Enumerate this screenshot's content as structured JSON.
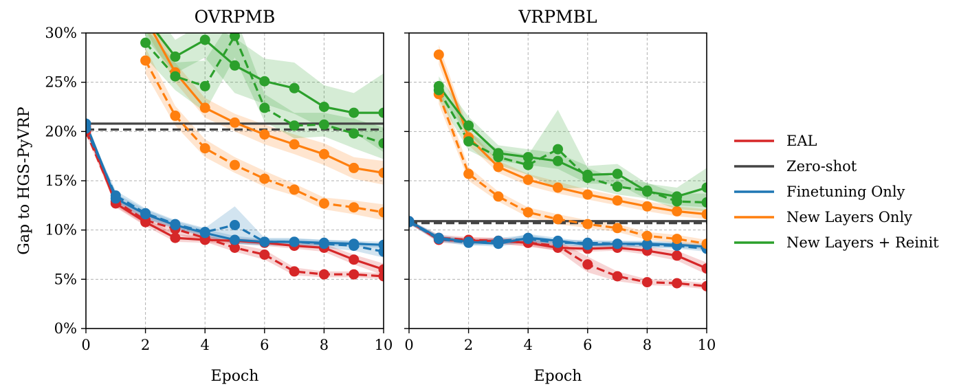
{
  "colors": {
    "EAL": "#d62728",
    "Zero-shot": "#444444",
    "Finetuning Only": "#1f77b4",
    "New Layers Only": "#ff7f0e",
    "New Layers + Reinit": "#2ca02c"
  },
  "legend": [
    "EAL",
    "Zero-shot",
    "Finetuning Only",
    "New Layers Only",
    "New Layers + Reinit"
  ],
  "chart_data": [
    {
      "type": "line",
      "title": "OVRPMB",
      "xlabel": "Epoch",
      "ylabel": "Gap to HGS-PyVRP",
      "xlim": [
        0,
        10
      ],
      "ylim": [
        0,
        30
      ],
      "xticks": [
        "0",
        "2",
        "4",
        "6",
        "8",
        "10"
      ],
      "yticks": [
        "0%",
        "5%",
        "10%",
        "15%",
        "20%",
        "25%",
        "30%"
      ],
      "grid": true,
      "series": [
        {
          "name": "EAL",
          "style": "solid",
          "x": [
            0,
            1,
            2,
            3,
            4,
            5,
            6,
            7,
            8,
            9,
            10
          ],
          "y": [
            20.5,
            12.7,
            10.8,
            9.2,
            9.0,
            8.9,
            8.7,
            8.4,
            8.2,
            7.0,
            6.0
          ],
          "band": [
            0.3,
            0.4,
            0.4,
            0.4,
            0.3,
            0.3,
            0.3,
            0.3,
            0.4,
            0.5,
            0.6
          ]
        },
        {
          "name": "EAL",
          "style": "dashed",
          "x": [
            0,
            1,
            2,
            3,
            4,
            5,
            6,
            7,
            8,
            9,
            10
          ],
          "y": [
            20.0,
            12.9,
            11.0,
            10.1,
            9.2,
            8.2,
            7.5,
            5.8,
            5.5,
            5.5,
            5.3
          ],
          "band": [
            0.3,
            0.5,
            0.5,
            0.5,
            0.4,
            0.4,
            0.5,
            0.4,
            0.3,
            0.3,
            0.3
          ]
        },
        {
          "name": "Finetuning Only",
          "style": "solid",
          "x": [
            0,
            1,
            2,
            3,
            4,
            5,
            6,
            7,
            8,
            9,
            10
          ],
          "y": [
            20.8,
            13.2,
            11.6,
            10.5,
            9.7,
            9.0,
            8.8,
            8.8,
            8.7,
            8.6,
            8.5
          ],
          "band": [
            0.2,
            0.5,
            0.5,
            0.4,
            0.4,
            0.4,
            0.3,
            0.3,
            0.3,
            0.3,
            0.3
          ]
        },
        {
          "name": "Finetuning Only",
          "style": "dashed",
          "x": [
            0,
            1,
            2,
            3,
            4,
            5,
            6,
            7,
            8,
            9,
            10
          ],
          "y": [
            20.3,
            13.5,
            11.7,
            10.6,
            9.8,
            10.5,
            8.8,
            8.8,
            8.6,
            8.4,
            7.8
          ],
          "band": [
            0.3,
            0.5,
            0.5,
            0.4,
            0.4,
            1.9,
            0.4,
            0.4,
            0.4,
            0.5,
            0.6
          ]
        },
        {
          "name": "New Layers Only",
          "style": "solid",
          "x": [
            2,
            3,
            4,
            5,
            6,
            7,
            8,
            9,
            10
          ],
          "y": [
            31.5,
            26.0,
            22.4,
            20.9,
            19.7,
            18.7,
            17.7,
            16.3,
            15.8
          ],
          "band": [
            1.2,
            1.0,
            1.0,
            0.9,
            1.0,
            1.0,
            1.1,
            1.1,
            1.2
          ]
        },
        {
          "name": "New Layers Only",
          "style": "dashed",
          "x": [
            2,
            3,
            4,
            5,
            6,
            7,
            8,
            9,
            10
          ],
          "y": [
            27.2,
            21.6,
            18.3,
            16.6,
            15.2,
            14.1,
            12.7,
            12.3,
            11.8
          ],
          "band": [
            1.3,
            1.0,
            0.9,
            0.8,
            0.8,
            0.6,
            0.6,
            0.7,
            0.8
          ]
        },
        {
          "name": "New Layers + Reinit",
          "style": "solid",
          "x": [
            2,
            3,
            4,
            5,
            6,
            7,
            8,
            9,
            10
          ],
          "y": [
            31.5,
            27.6,
            29.3,
            26.7,
            25.1,
            24.4,
            22.5,
            21.9,
            21.9
          ],
          "band": [
            2.0,
            1.7,
            1.8,
            2.8,
            2.3,
            2.6,
            2.2,
            2.0,
            4.0
          ]
        },
        {
          "name": "New Layers + Reinit",
          "style": "dashed",
          "x": [
            2,
            3,
            4,
            5,
            6,
            7,
            8,
            9,
            10
          ],
          "y": [
            29.0,
            25.6,
            24.6,
            29.7,
            22.4,
            20.6,
            20.7,
            19.8,
            18.8
          ],
          "band": [
            1.5,
            1.4,
            2.6,
            2.2,
            1.4,
            1.3,
            1.2,
            1.5,
            1.6
          ]
        }
      ],
      "hlines": [
        {
          "name": "Zero-shot",
          "style": "solid",
          "y": 20.8
        },
        {
          "name": "Zero-shot",
          "style": "dashed",
          "y": 20.2
        }
      ]
    },
    {
      "type": "line",
      "title": "VRPMBL",
      "xlabel": "Epoch",
      "ylabel": "",
      "xlim": [
        0,
        10
      ],
      "ylim": [
        0,
        30
      ],
      "xticks": [
        "0",
        "2",
        "4",
        "6",
        "8",
        "10"
      ],
      "yticks": [
        "0%",
        "5%",
        "10%",
        "15%",
        "20%",
        "25%",
        "30%"
      ],
      "grid": true,
      "series": [
        {
          "name": "EAL",
          "style": "solid",
          "x": [
            0,
            1,
            2,
            3,
            4,
            5,
            6,
            7,
            8,
            9,
            10
          ],
          "y": [
            10.9,
            9.0,
            8.9,
            8.9,
            8.7,
            8.2,
            8.1,
            8.2,
            7.9,
            7.4,
            6.1
          ],
          "band": [
            0.2,
            0.3,
            0.3,
            0.3,
            0.3,
            0.3,
            0.3,
            0.3,
            0.4,
            0.5,
            0.6
          ]
        },
        {
          "name": "EAL",
          "style": "dashed",
          "x": [
            0,
            1,
            2,
            3,
            4,
            5,
            6,
            7,
            8,
            9,
            10
          ],
          "y": [
            10.8,
            9.2,
            9.0,
            8.9,
            8.7,
            8.4,
            6.5,
            5.3,
            4.7,
            4.6,
            4.3
          ],
          "band": [
            0.2,
            0.3,
            0.3,
            0.3,
            0.4,
            0.5,
            0.8,
            0.5,
            0.3,
            0.3,
            0.3
          ]
        },
        {
          "name": "Finetuning Only",
          "style": "solid",
          "x": [
            0,
            1,
            2,
            3,
            4,
            5,
            6,
            7,
            8,
            9,
            10
          ],
          "y": [
            10.9,
            9.2,
            8.8,
            8.6,
            9.2,
            8.9,
            8.5,
            8.6,
            8.6,
            8.5,
            8.3
          ],
          "band": [
            0.2,
            0.3,
            0.3,
            0.3,
            0.4,
            0.3,
            0.3,
            0.3,
            0.3,
            0.3,
            0.3
          ]
        },
        {
          "name": "Finetuning Only",
          "style": "dashed",
          "x": [
            0,
            1,
            2,
            3,
            4,
            5,
            6,
            7,
            8,
            9,
            10
          ],
          "y": [
            10.8,
            9.1,
            8.7,
            8.9,
            9.1,
            8.7,
            8.7,
            8.6,
            8.5,
            8.4,
            8.1
          ],
          "band": [
            0.2,
            0.3,
            0.3,
            0.3,
            0.4,
            0.3,
            0.3,
            0.3,
            0.3,
            0.3,
            0.3
          ]
        },
        {
          "name": "New Layers Only",
          "style": "solid",
          "x": [
            1,
            2,
            3,
            4,
            5,
            6,
            7,
            8,
            9,
            10
          ],
          "y": [
            27.8,
            19.4,
            16.4,
            15.1,
            14.3,
            13.6,
            13.0,
            12.4,
            11.9,
            11.6
          ],
          "band": [
            1.0,
            0.8,
            0.6,
            0.6,
            0.6,
            0.5,
            0.5,
            0.5,
            0.5,
            0.5
          ]
        },
        {
          "name": "New Layers Only",
          "style": "dashed",
          "x": [
            1,
            2,
            3,
            4,
            5,
            6,
            7,
            8,
            9,
            10
          ],
          "y": [
            23.8,
            15.7,
            13.4,
            11.8,
            11.1,
            10.6,
            10.2,
            9.4,
            9.1,
            8.6
          ],
          "band": [
            1.0,
            0.7,
            0.5,
            0.5,
            0.5,
            0.4,
            0.4,
            0.4,
            0.4,
            0.4
          ]
        },
        {
          "name": "New Layers + Reinit",
          "style": "solid",
          "x": [
            1,
            2,
            3,
            4,
            5,
            6,
            7,
            8,
            9,
            10
          ],
          "y": [
            24.6,
            20.6,
            17.8,
            17.4,
            17.0,
            15.6,
            15.7,
            13.9,
            13.4,
            14.3
          ],
          "band": [
            1.0,
            0.9,
            0.8,
            0.8,
            0.8,
            0.9,
            1.0,
            0.8,
            0.9,
            2.0
          ]
        },
        {
          "name": "New Layers + Reinit",
          "style": "dashed",
          "x": [
            1,
            2,
            3,
            4,
            5,
            6,
            7,
            8,
            9,
            10
          ],
          "y": [
            24.2,
            19.0,
            17.4,
            16.6,
            18.2,
            15.3,
            14.4,
            14.0,
            12.9,
            12.8
          ],
          "band": [
            1.0,
            0.9,
            0.8,
            1.0,
            4.0,
            1.0,
            0.8,
            0.8,
            0.8,
            0.9
          ]
        }
      ],
      "hlines": [
        {
          "name": "Zero-shot",
          "style": "solid",
          "y": 10.9
        },
        {
          "name": "Zero-shot",
          "style": "dashed",
          "y": 10.7
        }
      ]
    }
  ]
}
